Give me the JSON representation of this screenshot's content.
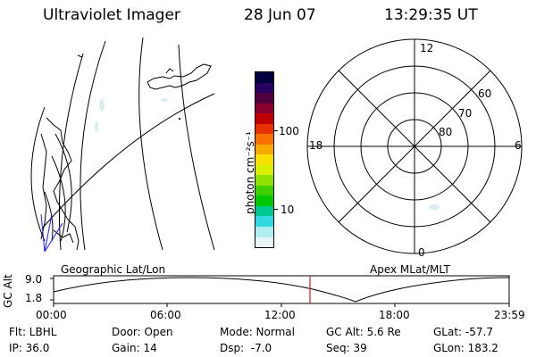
{
  "header": {
    "instrument": "Ultraviolet Imager",
    "date": "28 Jun 07",
    "time": "13:29:35 UT"
  },
  "colorbar": {
    "unit_label": "photon cm⁻²s⁻¹",
    "ticks": [
      "100",
      "10"
    ],
    "colors": [
      "#000040",
      "#2a0060",
      "#500040",
      "#8a0030",
      "#c00000",
      "#e83000",
      "#f87000",
      "#f8a800",
      "#f8e000",
      "#d8f000",
      "#90e000",
      "#40d000",
      "#00c800",
      "#00c890",
      "#30d8e0",
      "#b0ecf0",
      "#e8f4f8"
    ]
  },
  "polar_plot": {
    "mlt_labels": [
      "12",
      "18",
      "6",
      "0"
    ],
    "mlat_labels": [
      "60",
      "70",
      "80"
    ]
  },
  "timeline": {
    "y_axis_label": "GC Alt",
    "y_ticks": [
      "9.0",
      "1.8"
    ],
    "left_title": "Geographic Lat/Lon",
    "right_title": "Apex MLat/MLT",
    "x_ticks": [
      "00:00",
      "06:00",
      "12:00",
      "18:00",
      "23:59"
    ],
    "marker_color": "#d02020"
  },
  "info": {
    "filter": "Flt: LBHL",
    "door": "Door: Open",
    "mode": "Mode: Normal",
    "gc_alt": "GC Alt: 5.6 Re",
    "glat": "GLat: -57.7",
    "ip": "IP: 36.0",
    "gain": "Gain: 14",
    "dsp": "Dsp:  -7.0",
    "seq": "Seq: 39",
    "glon": "GLon: 183.2"
  }
}
